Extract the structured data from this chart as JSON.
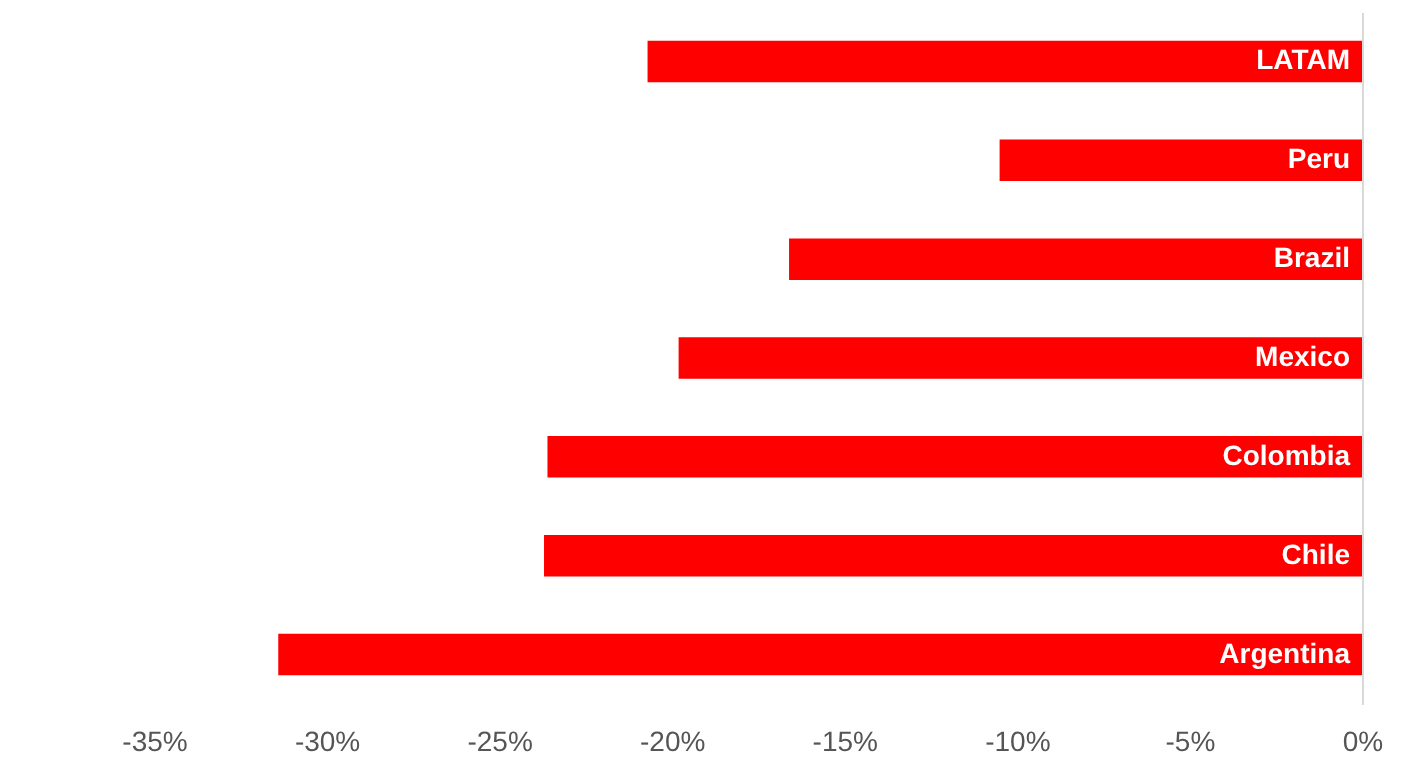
{
  "chart_data": {
    "type": "bar",
    "orientation": "horizontal",
    "categories": [
      "LATAM",
      "Peru",
      "Brazil",
      "Mexico",
      "Colombia",
      "Chile",
      "Argentina"
    ],
    "values": [
      -20.7,
      -10.5,
      -16.6,
      -19.8,
      -23.6,
      -23.7,
      -31.4
    ],
    "color": "#ff0000",
    "xlim": [
      -35,
      0
    ],
    "xticks": [
      {
        "value": -35,
        "label": "-35%"
      },
      {
        "value": -30,
        "label": "-30%"
      },
      {
        "value": -25,
        "label": "-25%"
      },
      {
        "value": -20,
        "label": "-20%"
      },
      {
        "value": -15,
        "label": "-15%"
      },
      {
        "value": -10,
        "label": "-10%"
      },
      {
        "value": -5,
        "label": "-5%"
      },
      {
        "value": 0,
        "label": "0%"
      }
    ],
    "grid": false
  }
}
